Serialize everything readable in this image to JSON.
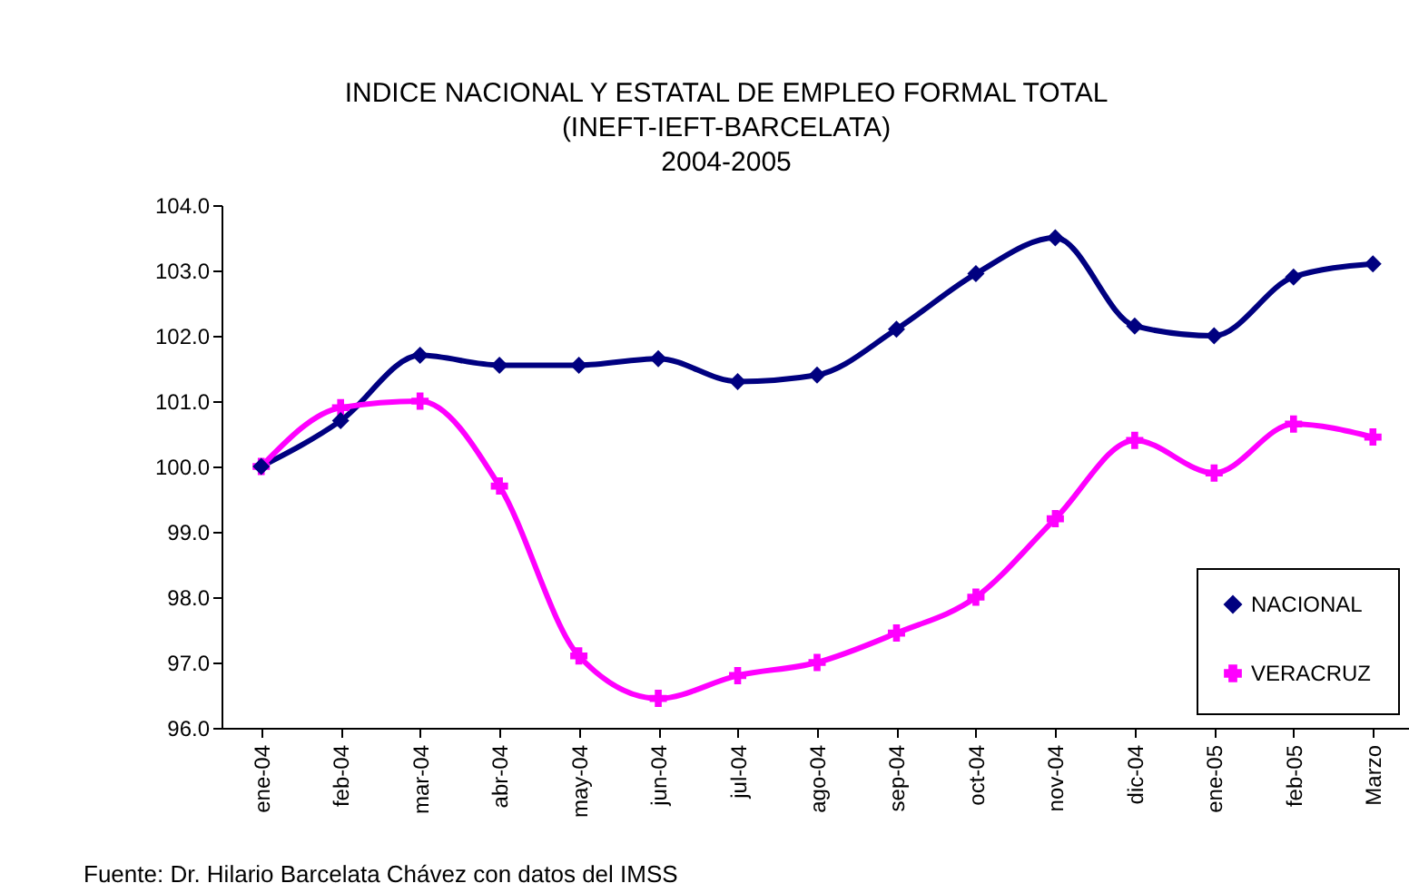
{
  "chart_data": {
    "type": "line",
    "title": "INDICE NACIONAL Y ESTATAL DE EMPLEO FORMAL TOTAL\n(INEFT-IEFT-BARCELATA)\n2004-2005",
    "categories": [
      "ene-04",
      "feb-04",
      "mar-04",
      "abr-04",
      "may-04",
      "jun-04",
      "jul-04",
      "ago-04",
      "sep-04",
      "oct-04",
      "nov-04",
      "dic-04",
      "ene-05",
      "feb-05",
      "Marzo"
    ],
    "series": [
      {
        "name": "NACIONAL",
        "color": "#000080",
        "marker": "diamond",
        "values": [
          100.0,
          100.7,
          101.7,
          101.55,
          101.55,
          101.65,
          101.3,
          101.4,
          102.1,
          102.95,
          103.5,
          102.15,
          102.0,
          102.9,
          103.1
        ]
      },
      {
        "name": "VERACRUZ",
        "color": "#ff00ff",
        "marker": "cross",
        "values": [
          100.0,
          100.9,
          101.0,
          99.7,
          97.1,
          96.45,
          96.8,
          97.0,
          97.45,
          98.0,
          99.2,
          100.4,
          99.9,
          100.65,
          100.45
        ]
      }
    ],
    "ylim": [
      96,
      104
    ],
    "yticks": [
      {
        "value": 96,
        "label": "96.0"
      },
      {
        "value": 97,
        "label": "97.0"
      },
      {
        "value": 98,
        "label": "98.0"
      },
      {
        "value": 99,
        "label": "99.0"
      },
      {
        "value": 100,
        "label": "100.0"
      },
      {
        "value": 101,
        "label": "101.0"
      },
      {
        "value": 102,
        "label": "102.0"
      },
      {
        "value": 103,
        "label": "103.0"
      },
      {
        "value": 104,
        "label": "104.0"
      }
    ],
    "legend": "bottom right",
    "grid": false,
    "annotations": [
      "Fuente: Dr. Hilario Barcelata Chávez con datos del IMSS"
    ]
  }
}
